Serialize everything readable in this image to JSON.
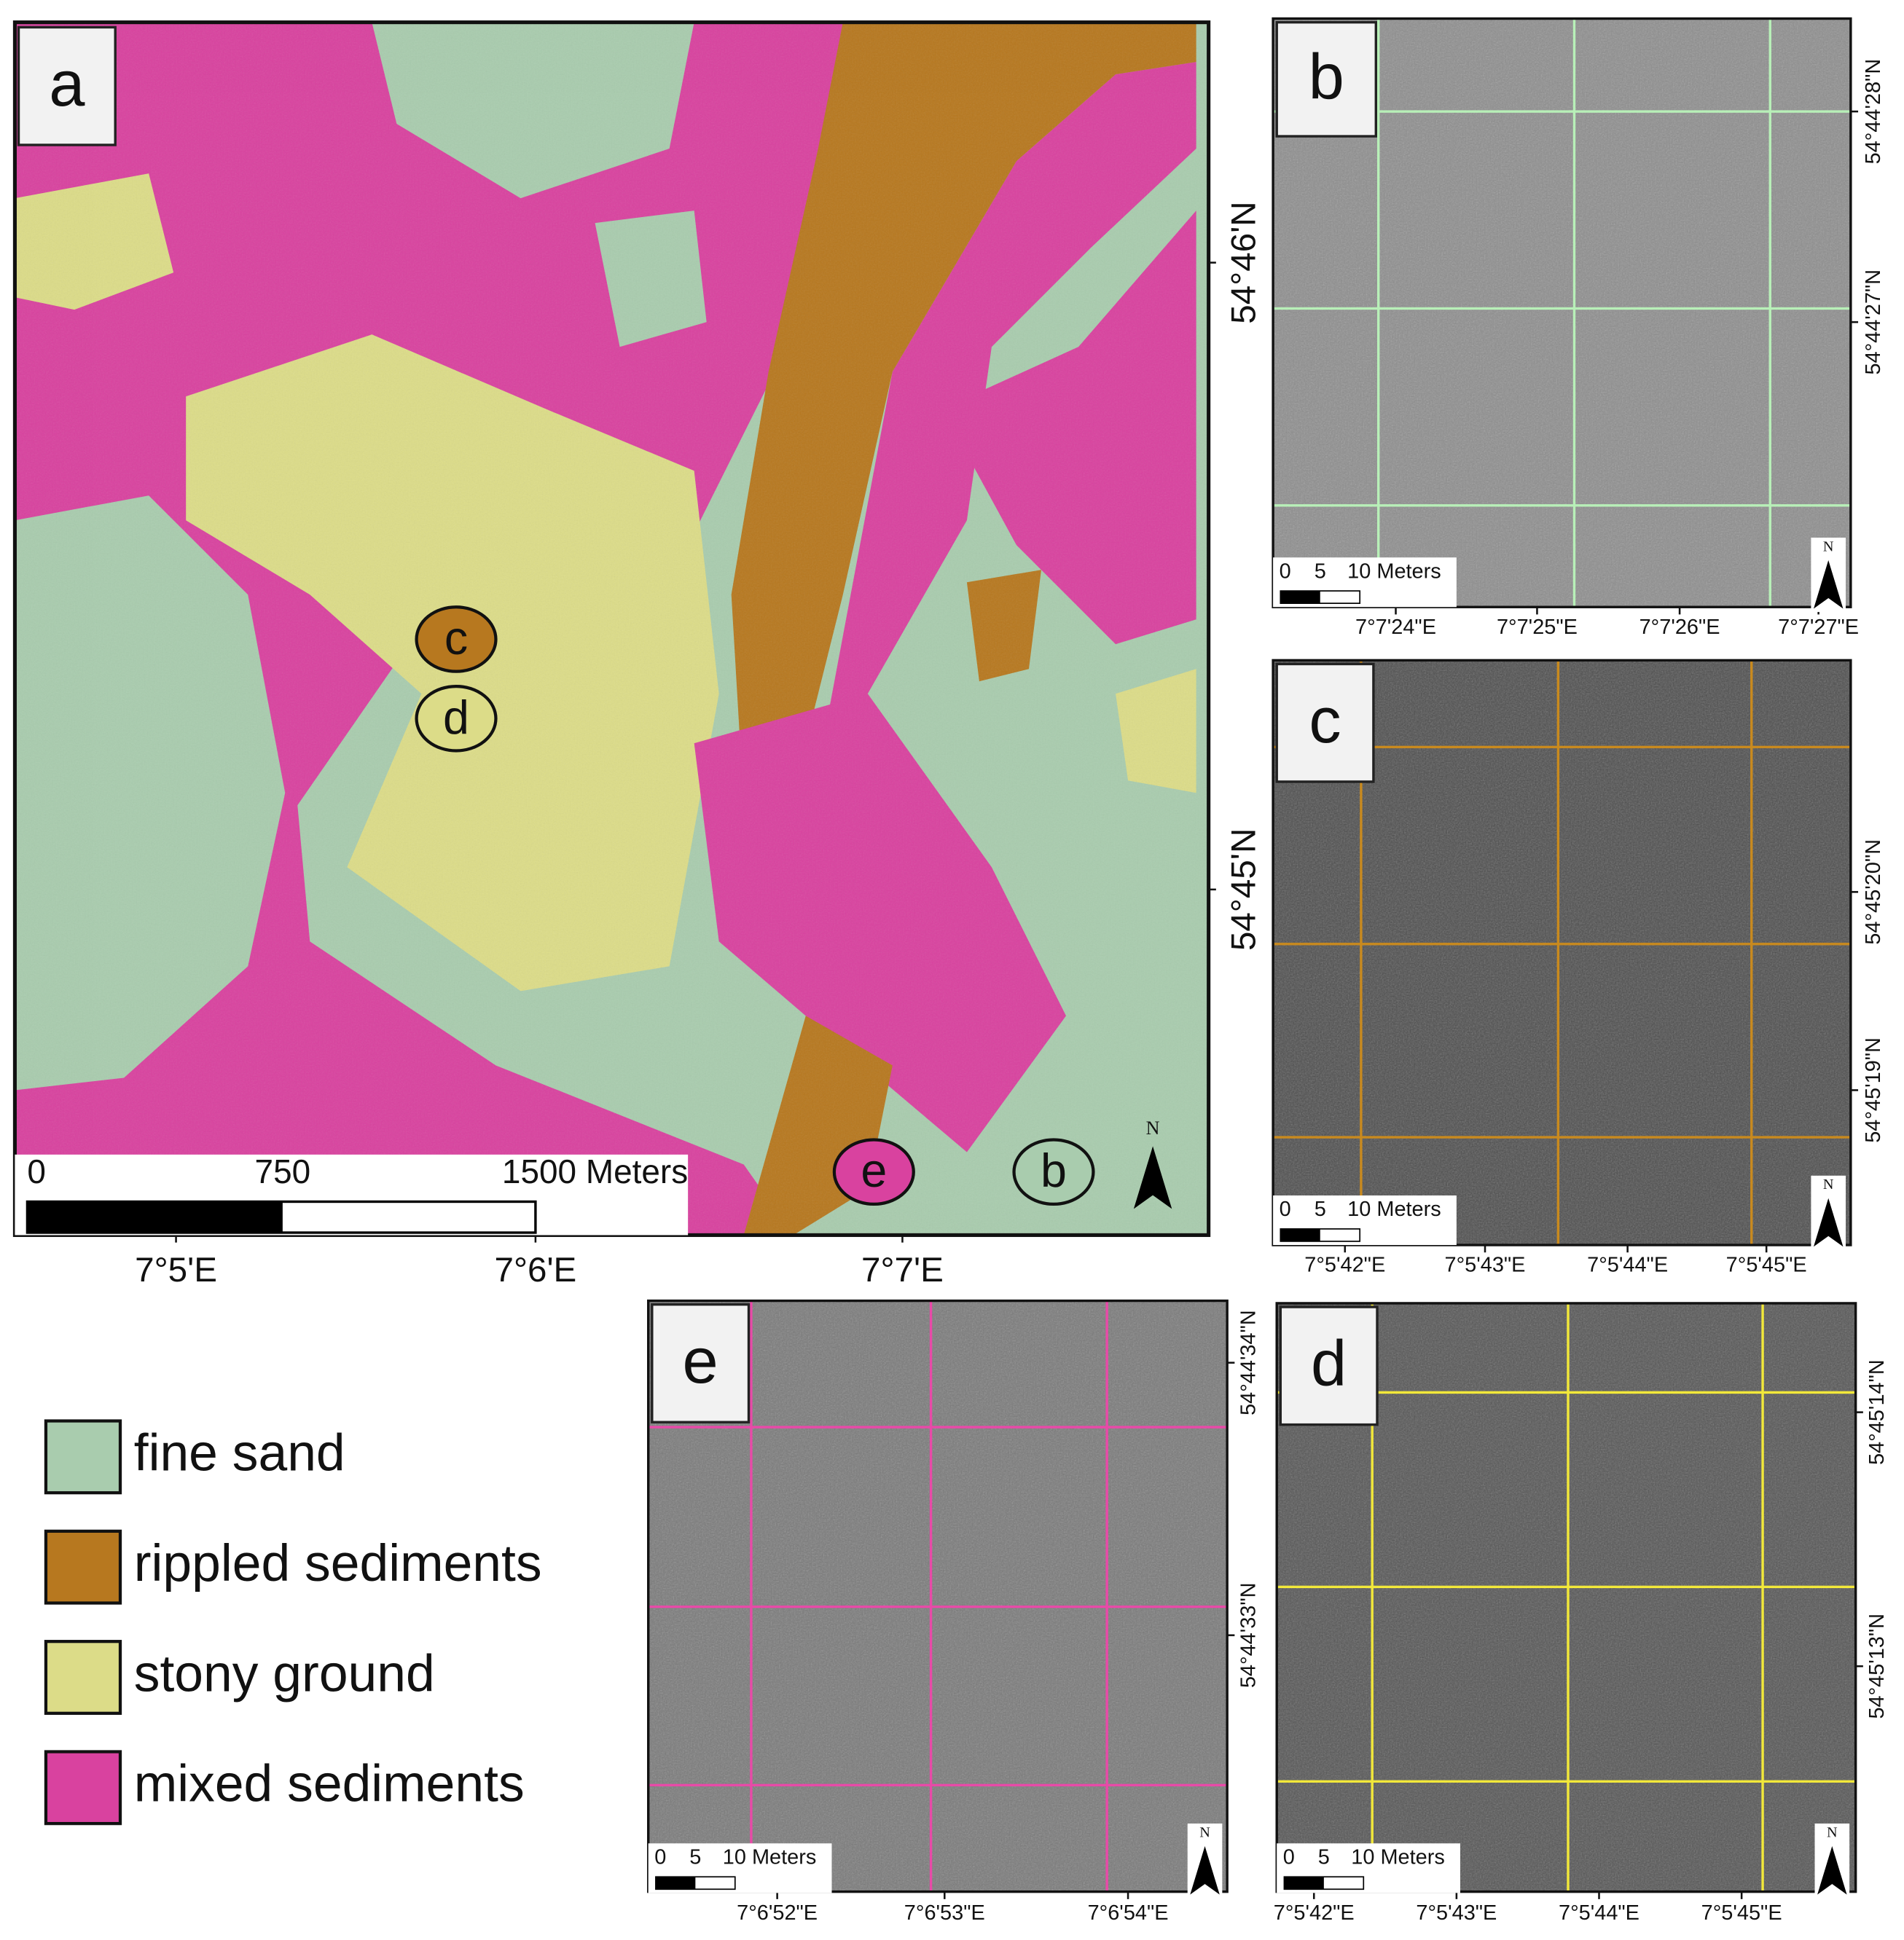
{
  "panels": {
    "a": {
      "label": "a",
      "scale_labels": [
        "0",
        "750",
        "1500 Meters"
      ],
      "lon_labels": [
        "7°5'E",
        "7°6'E",
        "7°7'E"
      ],
      "lat_labels": [
        "54°46'N",
        "54°45'N"
      ],
      "north": "N",
      "markers": [
        "c",
        "d",
        "e",
        "b"
      ]
    },
    "b": {
      "label": "b",
      "scale_labels": [
        "0",
        "5",
        "10 Meters"
      ],
      "lon_labels": [
        "7°7'24\"E",
        "7°7'25\"E",
        "7°7'26\"E",
        "7°7'27\"E"
      ],
      "lat_labels": [
        "54°44'28\"N",
        "54°44'27\"N"
      ],
      "north": "N",
      "grid_color": "#b8f0b8"
    },
    "c": {
      "label": "c",
      "scale_labels": [
        "0",
        "5",
        "10 Meters"
      ],
      "lon_labels": [
        "7°5'42\"E",
        "7°5'43\"E",
        "7°5'44\"E",
        "7°5'45\"E"
      ],
      "lat_labels": [
        "54°45'20\"N",
        "54°45'19\"N"
      ],
      "north": "N",
      "grid_color": "#c98a1e"
    },
    "e": {
      "label": "e",
      "scale_labels": [
        "0",
        "5",
        "10 Meters"
      ],
      "lon_labels": [
        "7°6'52\"E",
        "7°6'53\"E",
        "7°6'54\"E"
      ],
      "lat_labels": [
        "54°44'34\"N",
        "54°44'33\"N"
      ],
      "north": "N",
      "grid_color": "#e84aa8"
    },
    "d": {
      "label": "d",
      "scale_labels": [
        "0",
        "5",
        "10 Meters"
      ],
      "lon_labels": [
        "7°5'42\"E",
        "7°5'43\"E",
        "7°5'44\"E",
        "7°5'45\"E"
      ],
      "lat_labels": [
        "54°45'14\"N",
        "54°45'13\"N"
      ],
      "north": "N",
      "grid_color": "#f2e83a"
    }
  },
  "legend": [
    {
      "label": "fine sand",
      "color": "#a9ccae"
    },
    {
      "label": "rippled sediments",
      "color": "#b7781f"
    },
    {
      "label": "stony ground",
      "color": "#dcdc88"
    },
    {
      "label": "mixed sediments",
      "color": "#d9429f"
    }
  ]
}
